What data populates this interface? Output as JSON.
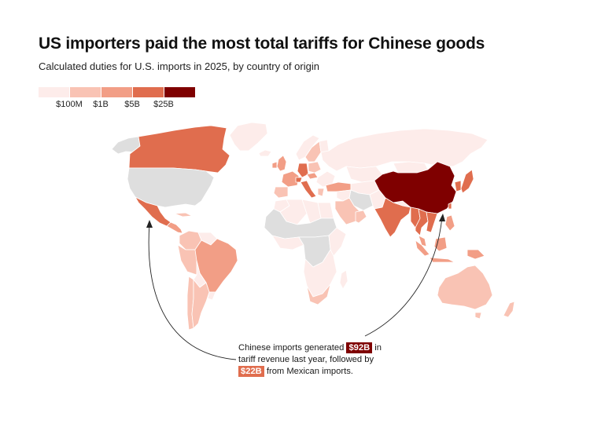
{
  "header": {
    "title": "US importers paid the most total tariffs for Chinese goods",
    "subtitle": "Calculated duties for U.S. imports in 2025, by country of origin"
  },
  "legend": {
    "colors": [
      "#fdecea",
      "#f9c3b4",
      "#f29e86",
      "#e06d4e",
      "#7f0000"
    ],
    "ticks": [
      "$100M",
      "$1B",
      "$5B",
      "$25B"
    ]
  },
  "colors": {
    "no_data": "#dedede",
    "tier1": "#fdecea",
    "tier2": "#f9c3b4",
    "tier3": "#f29e86",
    "tier4": "#e06d4e",
    "tier5": "#7f0000"
  },
  "annotation": {
    "line1_pre": "Chinese imports generated",
    "china_value": "$92B",
    "line1_post": "in",
    "line2": "tariff revenue last year, followed by",
    "mexico_value": "$22B",
    "line3_post": "from Mexican imports."
  }
}
